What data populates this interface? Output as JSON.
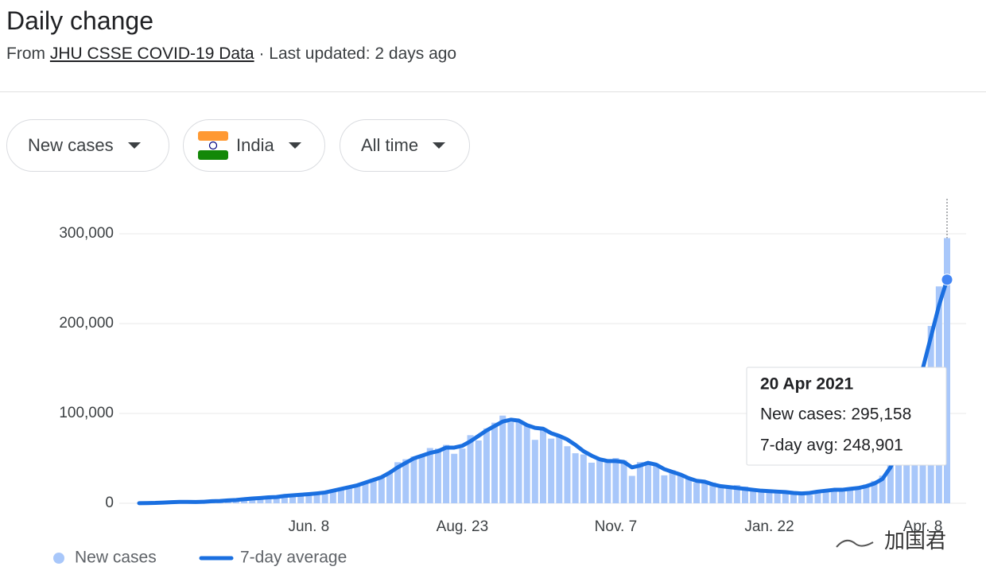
{
  "header": {
    "title": "Daily change",
    "source_prefix": "From",
    "source_link": "JHU CSSE COVID-19 Data",
    "source_suffix": "· Last updated: 2 days ago"
  },
  "controls": {
    "metric": "New cases",
    "country": "India",
    "period": "All time"
  },
  "watermark": "加国君",
  "chart_data": {
    "type": "combo",
    "categories": [
      null,
      null,
      null,
      null,
      null,
      null,
      null,
      null,
      null,
      null,
      null,
      null,
      null,
      null,
      null,
      null,
      null,
      null,
      null,
      null,
      null,
      "Jun. 8",
      null,
      null,
      null,
      null,
      null,
      null,
      null,
      null,
      null,
      null,
      null,
      null,
      null,
      null,
      null,
      null,
      null,
      null,
      "Aug. 23",
      null,
      null,
      null,
      null,
      null,
      null,
      null,
      null,
      null,
      null,
      null,
      null,
      null,
      null,
      null,
      null,
      null,
      null,
      "Nov. 7",
      null,
      null,
      null,
      null,
      null,
      null,
      null,
      null,
      null,
      null,
      null,
      null,
      null,
      null,
      null,
      null,
      null,
      null,
      "Jan. 22",
      null,
      null,
      null,
      null,
      null,
      null,
      null,
      null,
      null,
      null,
      null,
      null,
      null,
      null,
      null,
      null,
      null,
      null,
      "Apr. 8",
      null,
      null,
      null
    ],
    "series": [
      {
        "name": "New cases",
        "type": "bar",
        "color": "#a8c7fa",
        "values": [
          100,
          200,
          500,
          1000,
          1400,
          1600,
          1500,
          1300,
          1900,
          2500,
          2700,
          3500,
          3900,
          4900,
          5600,
          6200,
          6900,
          7500,
          8600,
          9200,
          9900,
          9900,
          11500,
          12900,
          15400,
          16900,
          19500,
          20900,
          22300,
          27100,
          29400,
          34900,
          45700,
          49000,
          52100,
          52000,
          61500,
          60900,
          65000,
          55100,
          60900,
          75800,
          69900,
          83300,
          89700,
          97600,
          90100,
          92600,
          86000,
          70600,
          81500,
          72000,
          74400,
          63500,
          55700,
          54400,
          45200,
          48600,
          46300,
          50400,
          47900,
          30500,
          45900,
          44100,
          41300,
          31100,
          36700,
          32000,
          27100,
          22900,
          24700,
          23100,
          20500,
          18200,
          20300,
          18600,
          15600,
          13800,
          14300,
          12700,
          13100,
          11000,
          12100,
          9100,
          11600,
          13200,
          16700,
          16500,
          17400,
          18300,
          20900,
          24900,
          30700,
          47300,
          62300,
          83500,
          113600,
          146800,
          197400,
          241400,
          295158
        ]
      },
      {
        "name": "7-day average",
        "type": "line",
        "color": "#1a6fe0",
        "values": [
          100,
          200,
          400,
          800,
          1200,
          1500,
          1600,
          1400,
          1700,
          2300,
          2500,
          3200,
          3700,
          4500,
          5300,
          5900,
          6600,
          7000,
          8200,
          8800,
          9500,
          10200,
          11000,
          12000,
          14000,
          16000,
          18000,
          20000,
          23000,
          26000,
          29000,
          34000,
          40000,
          45000,
          50000,
          53000,
          56000,
          58000,
          62000,
          62000,
          64000,
          69000,
          75000,
          81000,
          86000,
          91000,
          93000,
          92000,
          87000,
          84000,
          83000,
          78000,
          75000,
          71000,
          65000,
          58000,
          53000,
          49000,
          47000,
          47000,
          46000,
          40000,
          42000,
          45000,
          43000,
          38000,
          35000,
          32000,
          28000,
          25000,
          24000,
          21000,
          19000,
          18000,
          17000,
          16000,
          15000,
          14000,
          13500,
          13000,
          12500,
          11500,
          11000,
          11500,
          13000,
          14000,
          15000,
          15000,
          16000,
          17000,
          19000,
          22000,
          27000,
          40000,
          60000,
          85000,
          115000,
          150000,
          185000,
          220000,
          248901
        ]
      }
    ],
    "ylim": [
      0,
      340000
    ],
    "yticks": [
      0,
      {
        "value": 100000,
        "label": "100,000"
      },
      {
        "value": 200000,
        "label": "200,000"
      },
      {
        "value": 300000,
        "label": "300,000"
      }
    ],
    "grid": true,
    "tooltip": {
      "title": "20 Apr 2021",
      "lines": [
        "New cases: 295,158",
        "7-day avg: 248,901"
      ]
    }
  }
}
